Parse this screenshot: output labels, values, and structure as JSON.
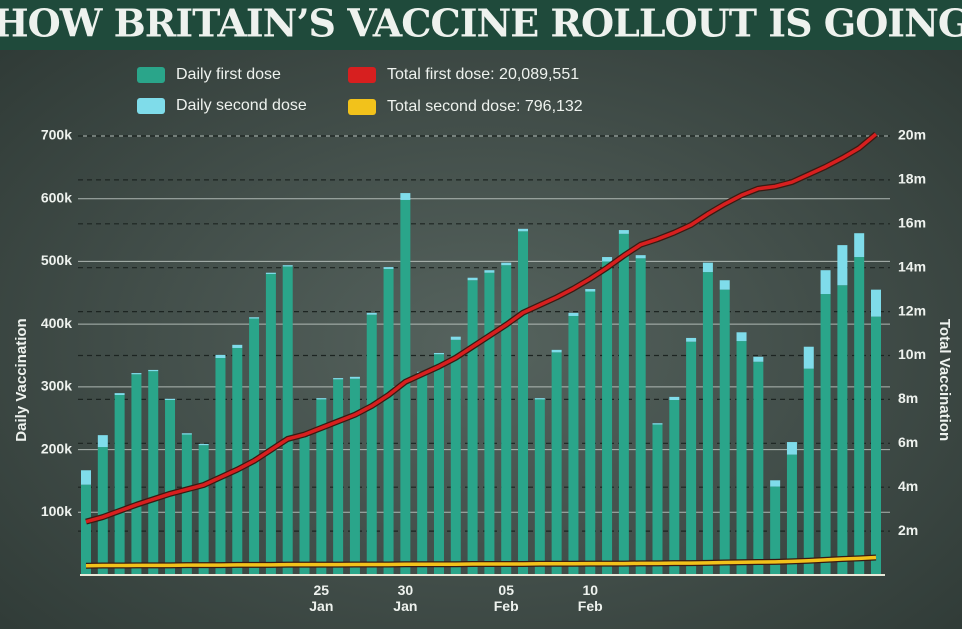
{
  "chart_data": {
    "type": "bar-line",
    "title": "HOW BRITAIN’S VACCINE ROLLOUT IS GOING",
    "ylabel": "Daily Vaccination",
    "y2label": "Total Vaccination",
    "categories": [
      null,
      null,
      null,
      null,
      null,
      null,
      null,
      null,
      null,
      null,
      null,
      null,
      null,
      null,
      "25 Jan",
      null,
      null,
      null,
      null,
      "30 Jan",
      null,
      null,
      null,
      null,
      null,
      "05 Feb",
      null,
      null,
      null,
      null,
      "10 Feb",
      null,
      null,
      null,
      null,
      null,
      null,
      null,
      null,
      null,
      null,
      null,
      null,
      null,
      null,
      null,
      null,
      null
    ],
    "series": [
      {
        "name": "Daily first dose",
        "color": "#2aa58a",
        "stack": true,
        "values": [
          144000,
          204000,
          287000,
          320000,
          325000,
          279000,
          224000,
          207000,
          346000,
          362000,
          409000,
          480000,
          492000,
          221000,
          280000,
          312000,
          313000,
          415000,
          488000,
          598000,
          322000,
          352000,
          375000,
          470000,
          482000,
          494000,
          548000,
          280000,
          355000,
          413000,
          452000,
          500000,
          544000,
          505000,
          240000,
          279000,
          372000,
          483000,
          455000,
          373000,
          340000,
          141000,
          192000,
          329000,
          448000,
          462000,
          507000,
          412000
        ]
      },
      {
        "name": "Daily second dose",
        "color": "#7fdcea",
        "stack": true,
        "values": [
          23000,
          19000,
          3000,
          2000,
          2000,
          2000,
          2000,
          2000,
          5000,
          5000,
          2000,
          2000,
          2000,
          2000,
          2000,
          2000,
          3000,
          3000,
          3000,
          11000,
          2000,
          2000,
          5000,
          4000,
          4000,
          4000,
          4000,
          2000,
          4000,
          5000,
          4000,
          7000,
          6000,
          5000,
          2000,
          5000,
          6000,
          15000,
          15000,
          14000,
          8000,
          10000,
          20000,
          35000,
          38000,
          64000,
          38000,
          43000
        ]
      },
      {
        "name": "Total first dose: 20,089,551",
        "color": "#d71f1f",
        "axis": "y2",
        "values": [
          2430000,
          2640000,
          2920000,
          3200000,
          3450000,
          3700000,
          3900000,
          4100000,
          4450000,
          4800000,
          5200000,
          5700000,
          6200000,
          6400000,
          6700000,
          7000000,
          7300000,
          7700000,
          8200000,
          8800000,
          9150000,
          9500000,
          9900000,
          10400000,
          10900000,
          11400000,
          11950000,
          12300000,
          12650000,
          13050000,
          13500000,
          14000000,
          14550000,
          15050000,
          15300000,
          15600000,
          15950000,
          16450000,
          16900000,
          17300000,
          17600000,
          17700000,
          17900000,
          18250000,
          18600000,
          19000000,
          19450000,
          20089551
        ]
      },
      {
        "name": "Total second dose: 796,132",
        "color": "#f2c21b",
        "axis": "y2",
        "values": [
          420000,
          430000,
          430000,
          440000,
          440000,
          440000,
          450000,
          450000,
          450000,
          460000,
          460000,
          460000,
          470000,
          470000,
          470000,
          470000,
          480000,
          480000,
          480000,
          490000,
          490000,
          490000,
          490000,
          500000,
          500000,
          500000,
          500000,
          510000,
          510000,
          510000,
          520000,
          520000,
          520000,
          530000,
          530000,
          540000,
          540000,
          550000,
          570000,
          580000,
          590000,
          600000,
          620000,
          650000,
          690000,
          730000,
          760000,
          796132
        ]
      }
    ],
    "ylim": [
      0,
      700000
    ],
    "yticks": [
      {
        "value": 100000,
        "label": "100k"
      },
      {
        "value": 200000,
        "label": "200k"
      },
      {
        "value": 300000,
        "label": "300k"
      },
      {
        "value": 400000,
        "label": "400k"
      },
      {
        "value": 500000,
        "label": "500k"
      },
      {
        "value": 600000,
        "label": "600k"
      },
      {
        "value": 700000,
        "label": "700k"
      }
    ],
    "y2lim": [
      0,
      20000000
    ],
    "y2ticks": [
      {
        "value": 2000000,
        "label": "2m"
      },
      {
        "value": 4000000,
        "label": "4m"
      },
      {
        "value": 6000000,
        "label": "6m"
      },
      {
        "value": 8000000,
        "label": "8m"
      },
      {
        "value": 10000000,
        "label": "10m"
      },
      {
        "value": 12000000,
        "label": "12m"
      },
      {
        "value": 14000000,
        "label": "14m"
      },
      {
        "value": 16000000,
        "label": "16m"
      },
      {
        "value": 18000000,
        "label": "18m"
      },
      {
        "value": 20000000,
        "label": "20m"
      }
    ],
    "grid": true
  }
}
